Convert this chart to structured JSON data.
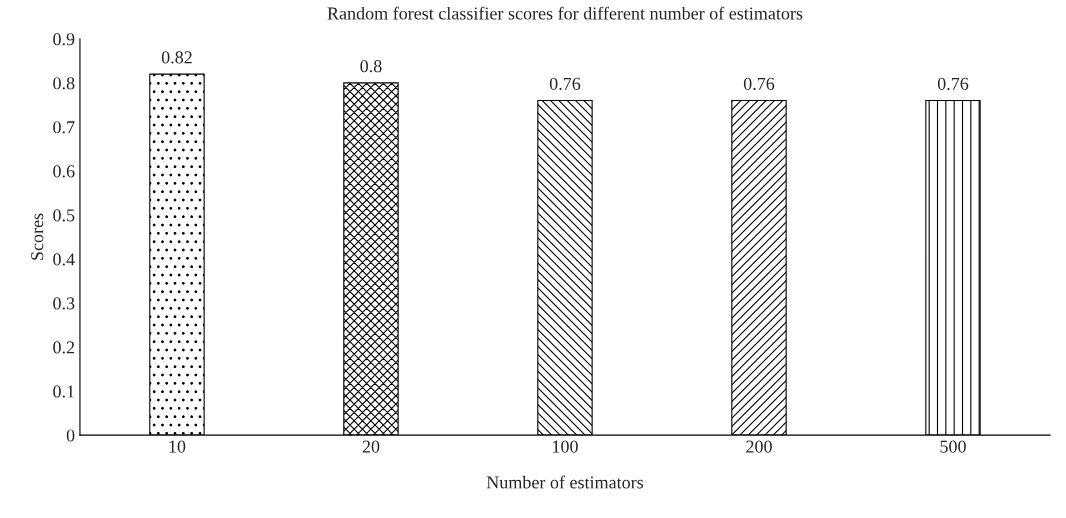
{
  "chart_data": {
    "type": "bar",
    "title": "Random forest classifier scores for different number of estimators",
    "xlabel": "Number of estimators",
    "ylabel": "Scores",
    "categories": [
      "10",
      "20",
      "100",
      "200",
      "500"
    ],
    "values": [
      0.82,
      0.8,
      0.76,
      0.76,
      0.76
    ],
    "colors": [
      "#000000",
      "#000000",
      "#000000",
      "#000000",
      "#000000"
    ],
    "ylim": [
      0,
      0.9
    ],
    "yticks": [
      0,
      0.1,
      0.2,
      0.3,
      0.4,
      0.5,
      0.6,
      0.7,
      0.8,
      0.9
    ],
    "data_labels": true,
    "grid": false,
    "legend": false
  }
}
